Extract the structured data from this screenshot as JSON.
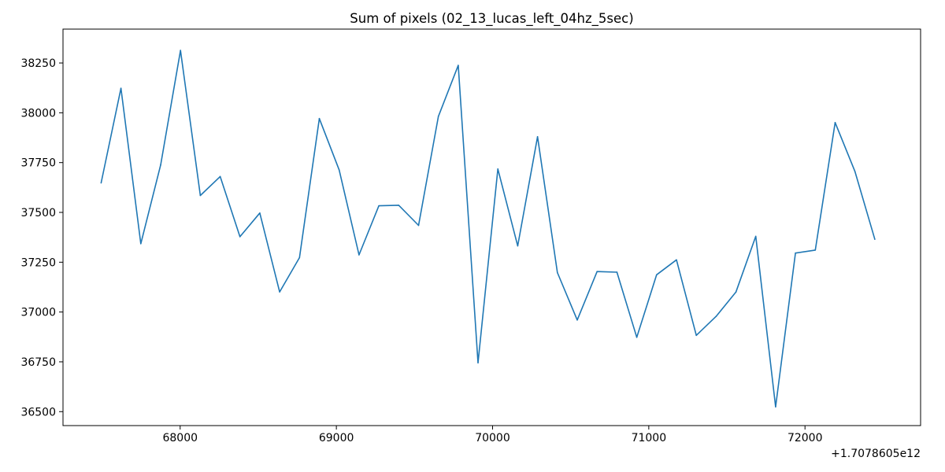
{
  "chart_data": {
    "type": "line",
    "title": "Sum of pixels (02_13_lucas_left_04hz_5sec)",
    "xlabel": "",
    "ylabel": "",
    "x_offset_label": "+1.7078605e12",
    "xlim": [
      67250,
      72740
    ],
    "ylim": [
      36430,
      38420
    ],
    "x_ticks": [
      68000,
      69000,
      70000,
      71000,
      72000
    ],
    "y_ticks": [
      36500,
      36750,
      37000,
      37250,
      37500,
      37750,
      38000,
      38250
    ],
    "grid": false,
    "line_color": "#1f77b4",
    "series": [
      {
        "x": [
          67494,
          67621,
          67748,
          67875,
          68002,
          68129,
          68256,
          68383,
          68510,
          68637,
          68764,
          68891,
          69018,
          69145,
          69272,
          69399,
          69526,
          69653,
          69780,
          69907,
          70034,
          70161,
          70288,
          70415,
          70542,
          70669,
          70796,
          70923,
          71050,
          71177,
          71304,
          71431,
          71558,
          71685,
          71812,
          71939,
          72066,
          72193,
          72320,
          72447
        ],
        "values": [
          37648,
          38123,
          37343,
          37738,
          38313,
          37585,
          37680,
          37378,
          37497,
          37101,
          37273,
          37971,
          37713,
          37287,
          37533,
          37536,
          37435,
          37982,
          38238,
          36745,
          37718,
          37332,
          37880,
          37198,
          36960,
          37203,
          37200,
          36873,
          37187,
          37262,
          36883,
          36978,
          37100,
          37380,
          36524,
          37296,
          37311,
          37951,
          37705,
          37365
        ]
      }
    ]
  }
}
